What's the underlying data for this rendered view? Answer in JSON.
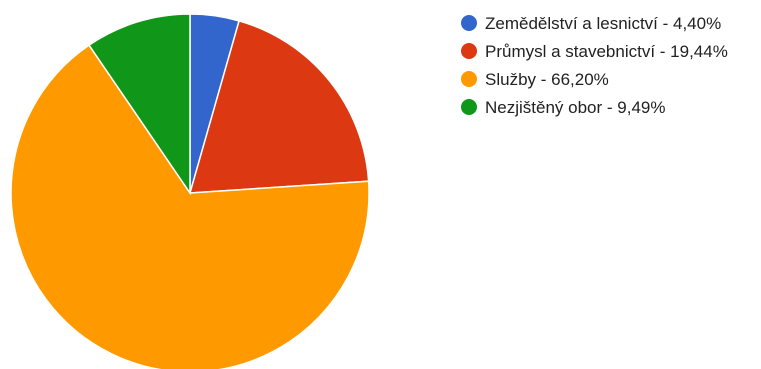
{
  "chart_data": {
    "type": "pie",
    "slices": [
      {
        "label": "Zemědělství a lesnictví - 4,40%",
        "value": 4.4,
        "color": "#3366cc"
      },
      {
        "label": "Průmysl a stavebnictví - 19,44%",
        "value": 19.44,
        "color": "#dc3912"
      },
      {
        "label": "Služby - 66,20%",
        "value": 66.2,
        "color": "#ff9900"
      },
      {
        "label": "Nezjištěný obor - 9,49%",
        "value": 9.49,
        "color": "#109618"
      }
    ],
    "legend_position": "right",
    "start_angle": "top",
    "direction": "clockwise"
  }
}
